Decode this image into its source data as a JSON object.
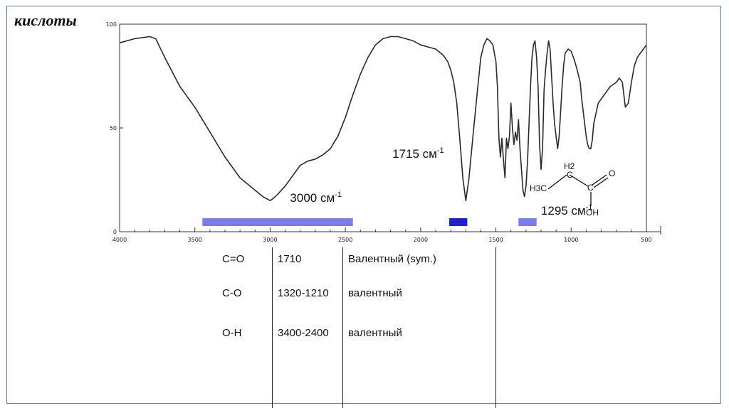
{
  "title": "кислоты",
  "chart_data": {
    "type": "line",
    "x_axis": {
      "range": [
        4000,
        500
      ],
      "reversed": true,
      "ticks": [
        4000,
        3500,
        3000,
        2500,
        2000,
        1500,
        1000,
        500
      ],
      "tick_labels": [
        "4000",
        "3500",
        "3000",
        "2500",
        "2000",
        "1500",
        "1000",
        "500"
      ]
    },
    "y_axis": {
      "range": [
        0,
        100
      ],
      "tick_labels": [
        "0",
        "50",
        "100"
      ],
      "tick_values": [
        0,
        50,
        100
      ]
    },
    "series": [
      {
        "x": [
          4000,
          3900,
          3800,
          3760,
          3700,
          3600,
          3500,
          3400,
          3300,
          3200,
          3100,
          3050,
          3000,
          2980,
          2950,
          2900,
          2850,
          2800,
          2750,
          2700,
          2650,
          2600,
          2550,
          2500,
          2450,
          2400,
          2350,
          2300,
          2250,
          2200,
          2150,
          2100,
          2050,
          2000,
          1950,
          1900,
          1850,
          1820,
          1800,
          1780,
          1760,
          1740,
          1720,
          1700,
          1680,
          1650,
          1620,
          1600,
          1580,
          1560,
          1540,
          1520,
          1500,
          1490,
          1480,
          1470,
          1460,
          1450,
          1440,
          1430,
          1420,
          1410,
          1400,
          1390,
          1380,
          1370,
          1360,
          1350,
          1340,
          1330,
          1320,
          1310,
          1300,
          1290,
          1280,
          1270,
          1260,
          1250,
          1240,
          1230,
          1220,
          1210,
          1200,
          1190,
          1180,
          1170,
          1160,
          1150,
          1140,
          1130,
          1120,
          1110,
          1100,
          1090,
          1080,
          1070,
          1060,
          1050,
          1040,
          1020,
          1000,
          980,
          960,
          940,
          930,
          920,
          910,
          900,
          890,
          880,
          870,
          860,
          850,
          820,
          780,
          740,
          700,
          680,
          660,
          650,
          640,
          620,
          600,
          580,
          560,
          540,
          520,
          500
        ],
        "y": [
          91,
          93,
          94,
          93,
          84,
          70,
          60,
          48,
          36,
          26,
          20,
          17,
          15,
          16,
          18,
          22,
          27,
          32,
          34,
          35,
          37,
          40,
          46,
          55,
          66,
          76,
          84,
          90,
          93,
          94,
          94,
          93,
          92,
          90,
          89,
          88,
          85,
          82,
          78,
          72,
          62,
          45,
          26,
          15,
          25,
          48,
          70,
          84,
          90,
          93,
          92,
          90,
          82,
          70,
          45,
          36,
          45,
          35,
          26,
          45,
          40,
          46,
          62,
          50,
          42,
          48,
          44,
          54,
          40,
          30,
          20,
          17,
          22,
          34,
          52,
          70,
          84,
          90,
          92,
          84,
          70,
          42,
          30,
          40,
          68,
          78,
          86,
          92,
          88,
          75,
          62,
          52,
          46,
          40,
          46,
          58,
          70,
          80,
          86,
          88,
          87,
          83,
          78,
          72,
          64,
          58,
          52,
          46,
          42,
          40,
          40,
          44,
          52,
          62,
          66,
          70,
          72,
          74,
          72,
          66,
          60,
          62,
          72,
          80,
          84,
          86,
          88,
          90
        ]
      }
    ],
    "annotations": [
      {
        "text": "3000 см",
        "sup": "-1",
        "x": 3000
      },
      {
        "text": "1715 см",
        "sup": "-1",
        "x": 1715
      },
      {
        "text": "1295 см",
        "sup": "-1",
        "x": 1295
      }
    ],
    "bands": [
      {
        "from": 3450,
        "to": 2450,
        "color": "#7b7bef"
      },
      {
        "from": 1810,
        "to": 1690,
        "color": "#1f1fd6"
      },
      {
        "from": 1350,
        "to": 1230,
        "color": "#7b7bef"
      }
    ]
  },
  "molecule": {
    "h3c": "H3C",
    "h2": "H2",
    "c": "C",
    "o": "O",
    "oh": "OH"
  },
  "table": {
    "rows": [
      {
        "bond": "C=O",
        "range": "1710",
        "type": "Валентный (sym.)"
      },
      {
        "bond": "C-O",
        "range": "1320-1210",
        "type": "валентный"
      },
      {
        "bond": "O-H",
        "range": "3400-2400",
        "type": "валентный"
      }
    ]
  },
  "colors": {
    "band_light": "#7b7bef",
    "band_dark": "#1f1fd6",
    "frame": "#5f7f8c"
  }
}
